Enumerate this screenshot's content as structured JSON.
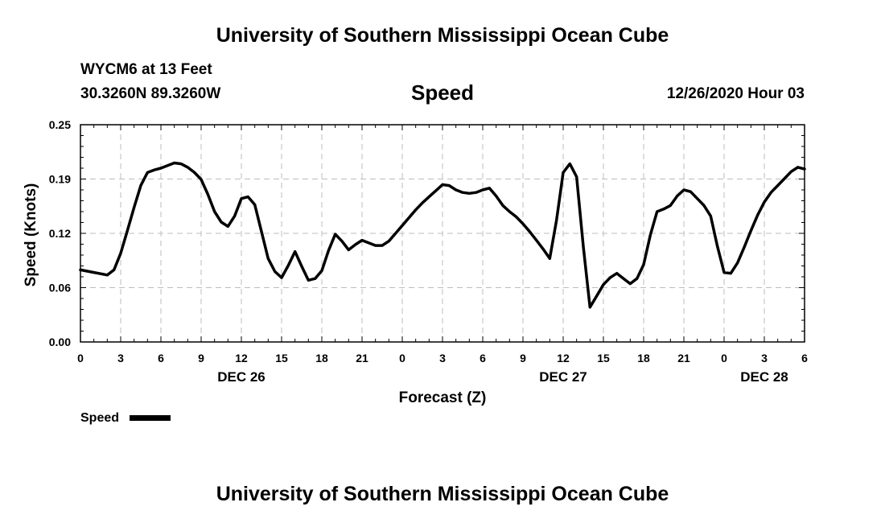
{
  "header": {
    "title": "University of Southern Mississippi Ocean Cube",
    "station": "WYCM6 at 13 Feet",
    "coords": "30.3260N 89.3260W",
    "datetime": "12/26/2020 Hour 03"
  },
  "footer": {
    "title": "University of Southern Mississippi Ocean Cube"
  },
  "chart_data": {
    "type": "line",
    "title": "Speed",
    "xlabel": "Forecast (Z)",
    "ylabel": "Speed (Knots)",
    "ylim": [
      0,
      0.25
    ],
    "xlim": [
      0,
      54
    ],
    "y_ticks": [
      "0.00",
      "0.06",
      "0.12",
      "0.19",
      "0.25"
    ],
    "y_tick_values": [
      0.0,
      0.0625,
      0.125,
      0.1875,
      0.25
    ],
    "x_ticks": [
      0,
      3,
      6,
      9,
      12,
      15,
      18,
      21,
      24,
      27,
      30,
      33,
      36,
      39,
      42,
      45,
      48,
      51,
      54
    ],
    "x_tick_labels": [
      "0",
      "3",
      "6",
      "9",
      "12",
      "15",
      "18",
      "21",
      "0",
      "3",
      "6",
      "9",
      "12",
      "15",
      "18",
      "21",
      "0",
      "3",
      "6"
    ],
    "date_labels": [
      {
        "x": 12,
        "label": "DEC 26"
      },
      {
        "x": 36,
        "label": "DEC 27"
      },
      {
        "x": 51,
        "label": "DEC 28"
      }
    ],
    "grid": true,
    "legend_position": "bottom-left",
    "series": [
      {
        "name": "Speed",
        "color": "#000000",
        "x": [
          0,
          1,
          2,
          2.5,
          3,
          3.5,
          4,
          4.5,
          5,
          5.5,
          6,
          6.5,
          7,
          7.5,
          8,
          8.5,
          9,
          9.5,
          10,
          10.5,
          11,
          11.5,
          12,
          12.5,
          13,
          13.5,
          14,
          14.5,
          15,
          15.5,
          16,
          16.5,
          17,
          17.5,
          18,
          18.5,
          19,
          19.5,
          20,
          20.5,
          21,
          21.5,
          22,
          22.5,
          23,
          23.5,
          24,
          24.5,
          25,
          25.5,
          26,
          26.5,
          27,
          27.5,
          28,
          28.5,
          29,
          29.5,
          30,
          30.5,
          31,
          31.5,
          32,
          32.5,
          33,
          33.5,
          34,
          34.5,
          35,
          35.5,
          36,
          36.5,
          37,
          37.5,
          38,
          38.5,
          39,
          39.5,
          40,
          40.5,
          41,
          41.5,
          42,
          42.5,
          43,
          43.5,
          44,
          44.5,
          45,
          45.5,
          46,
          46.5,
          47,
          47.5,
          48,
          48.5,
          49,
          49.5,
          50,
          50.5,
          51,
          51.5,
          52,
          52.5,
          53,
          53.5,
          54
        ],
        "y": [
          0.083,
          0.08,
          0.077,
          0.083,
          0.102,
          0.128,
          0.155,
          0.18,
          0.195,
          0.198,
          0.2,
          0.203,
          0.206,
          0.205,
          0.201,
          0.195,
          0.187,
          0.17,
          0.15,
          0.138,
          0.133,
          0.145,
          0.165,
          0.167,
          0.158,
          0.127,
          0.096,
          0.081,
          0.074,
          0.088,
          0.104,
          0.087,
          0.071,
          0.073,
          0.082,
          0.105,
          0.124,
          0.116,
          0.106,
          0.112,
          0.117,
          0.114,
          0.111,
          0.111,
          0.116,
          0.125,
          0.134,
          0.143,
          0.152,
          0.16,
          0.167,
          0.174,
          0.181,
          0.18,
          0.175,
          0.172,
          0.171,
          0.172,
          0.175,
          0.177,
          0.168,
          0.157,
          0.15,
          0.144,
          0.136,
          0.127,
          0.117,
          0.107,
          0.096,
          0.14,
          0.195,
          0.205,
          0.19,
          0.11,
          0.04,
          0.053,
          0.066,
          0.074,
          0.079,
          0.073,
          0.067,
          0.073,
          0.089,
          0.123,
          0.15,
          0.153,
          0.157,
          0.168,
          0.175,
          0.173,
          0.165,
          0.157,
          0.145,
          0.11,
          0.08,
          0.079,
          0.091,
          0.109,
          0.128,
          0.146,
          0.161,
          0.172,
          0.18,
          0.188,
          0.196,
          0.201,
          0.199
        ]
      }
    ]
  }
}
